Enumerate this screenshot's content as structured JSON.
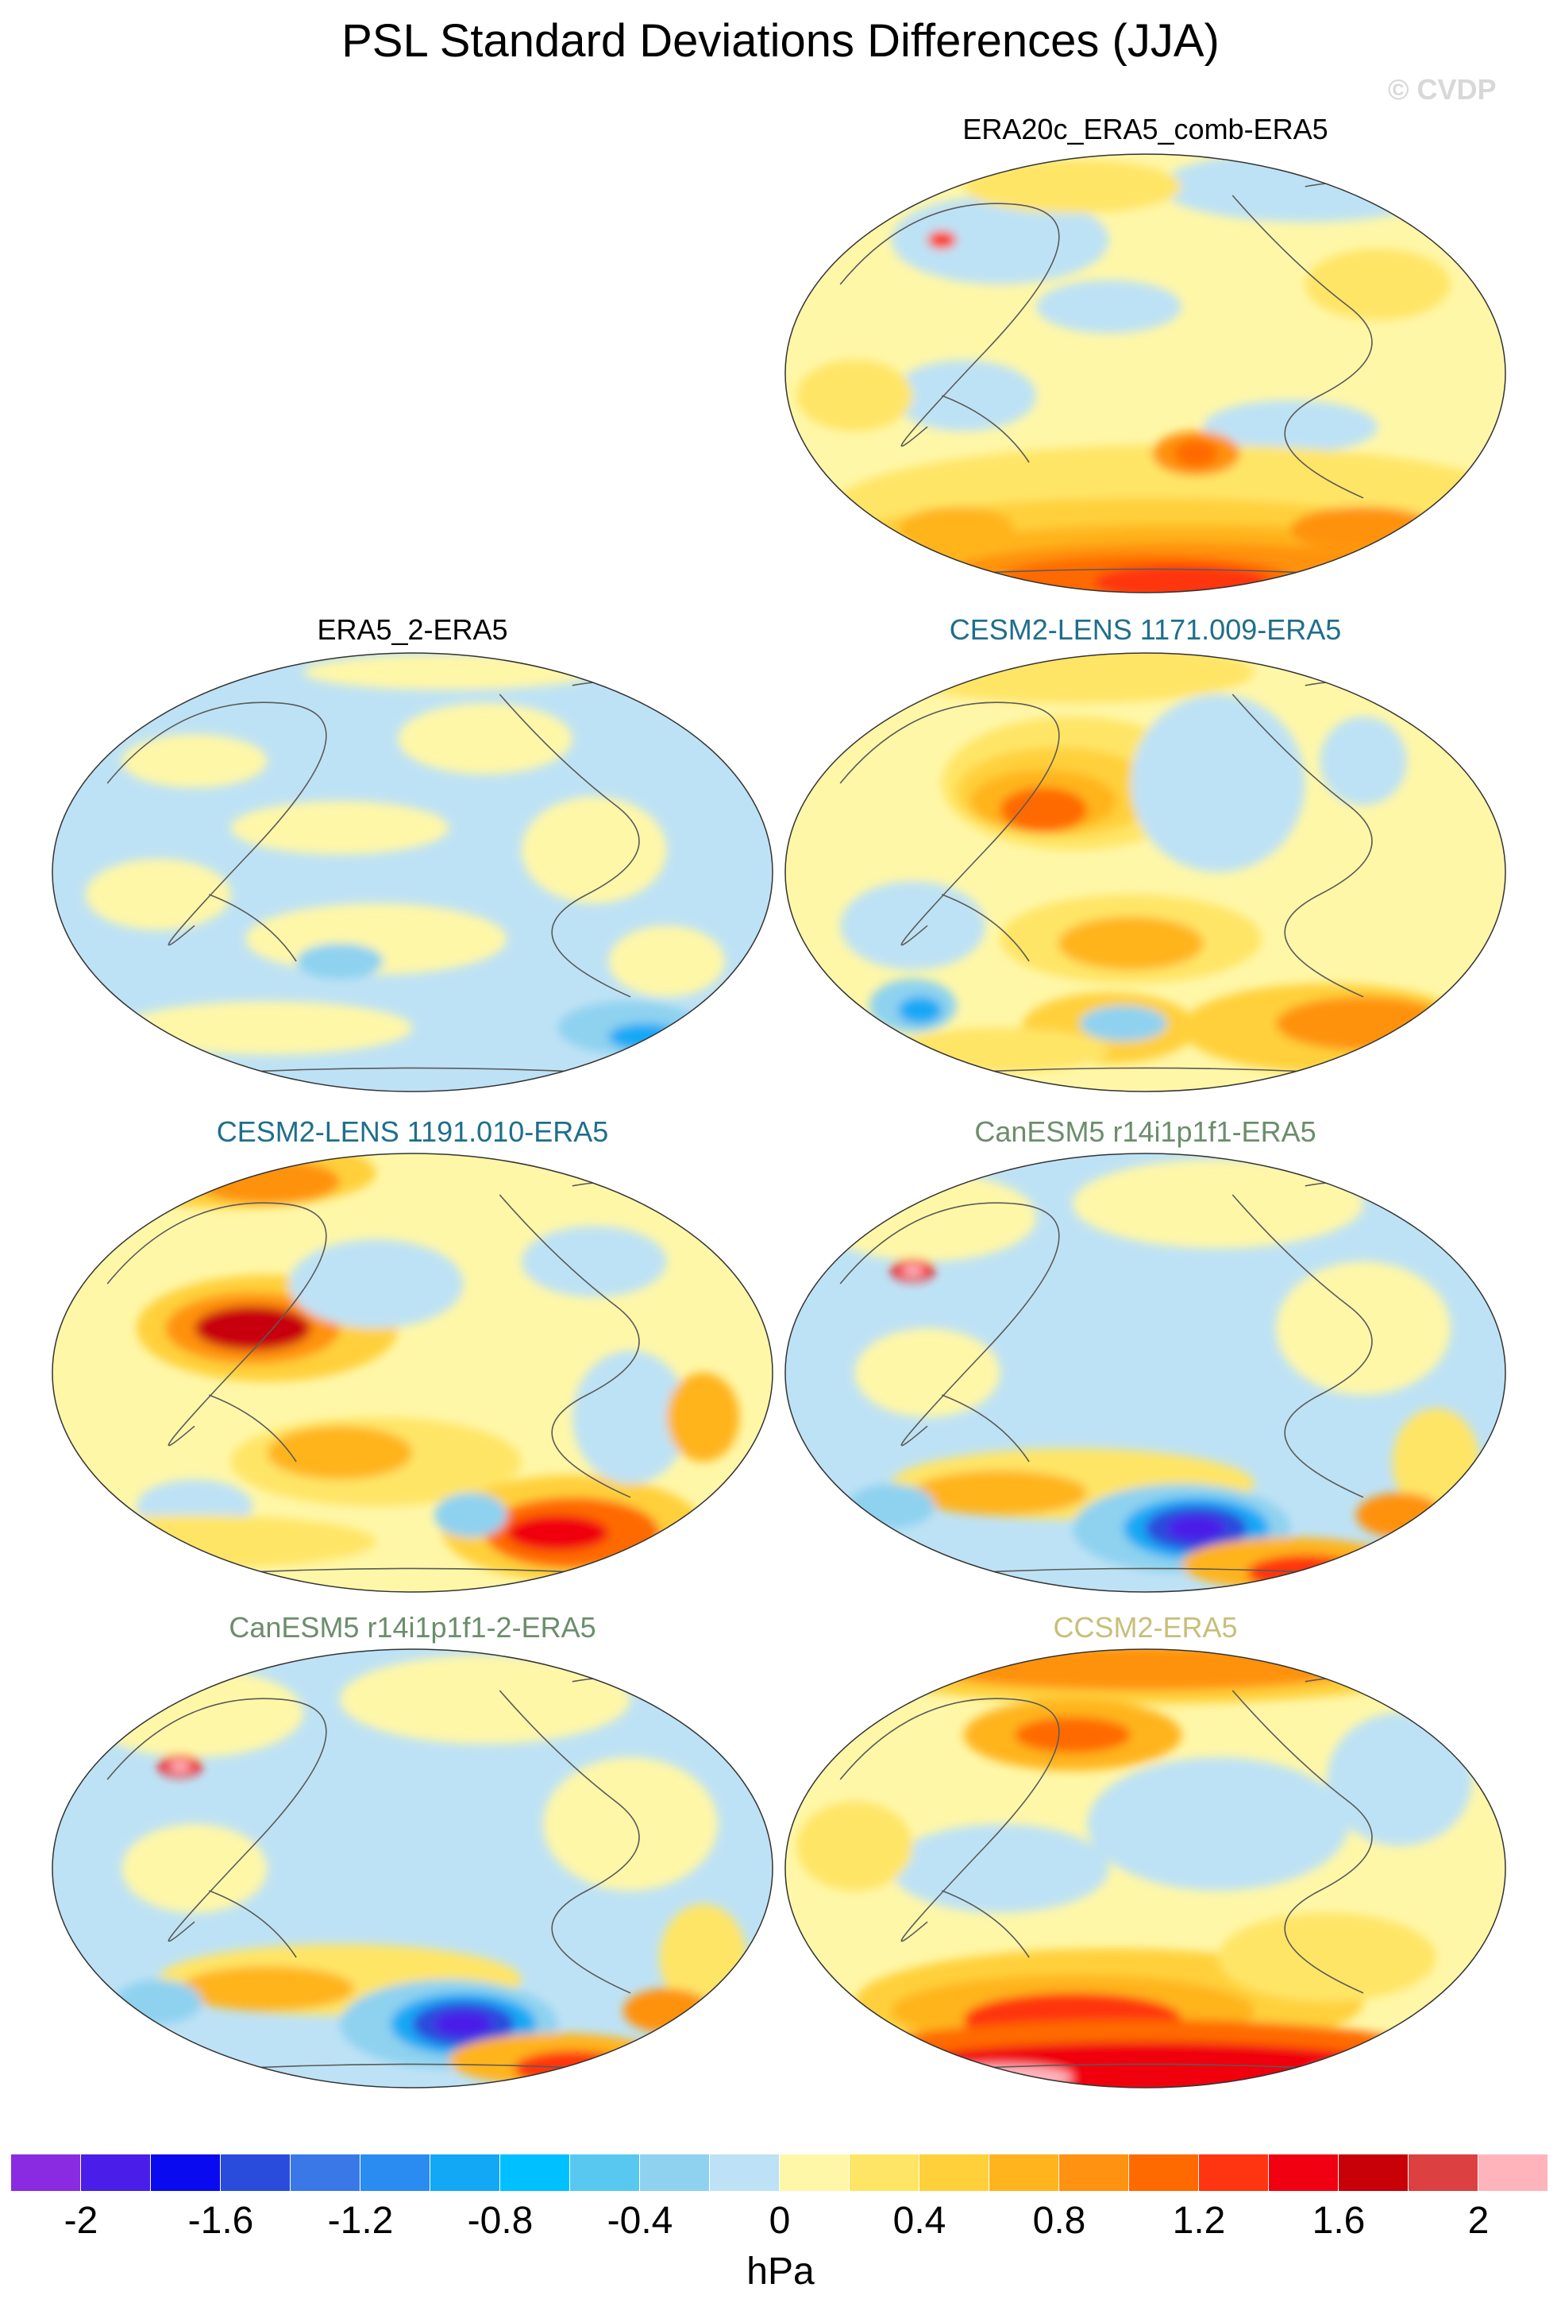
{
  "title": "PSL Standard Deviations Differences (JJA)",
  "watermark": "© CVDP",
  "panels": [
    {
      "id": "p1",
      "label": "ERA20c_ERA5_comb-ERA5",
      "label_color": "#000000",
      "pattern": "southern-ocean-warm"
    },
    {
      "id": "p2",
      "label": "ERA5_2-ERA5",
      "label_color": "#000000",
      "pattern": "near-neutral"
    },
    {
      "id": "p3",
      "label": "CESM2-LENS 1171.009-ERA5",
      "label_color": "#1f6f8b",
      "pattern": "north-pacific-warm"
    },
    {
      "id": "p4",
      "label": "CESM2-LENS 1191.010-ERA5",
      "label_color": "#1f6f8b",
      "pattern": "strong-warm"
    },
    {
      "id": "p5",
      "label": "CanESM5 r14i1p1f1-ERA5",
      "label_color": "#6b8e6b",
      "pattern": "south-pacific-cold"
    },
    {
      "id": "p6",
      "label": "CanESM5 r14i1p1f1-2-ERA5",
      "label_color": "#6b8e6b",
      "pattern": "south-pacific-cold"
    },
    {
      "id": "p7",
      "label": "CCSM2-ERA5",
      "label_color": "#c7bf7a",
      "pattern": "high-latitude-warm"
    }
  ],
  "colorbar": {
    "colors": [
      "#8a2be2",
      "#4a1ee8",
      "#0a0af0",
      "#2a4cdc",
      "#3a78e8",
      "#2a8cf0",
      "#12a8f5",
      "#00c0ff",
      "#58c8f0",
      "#8ed2f0",
      "#bee2f5",
      "#fff7a8",
      "#ffe566",
      "#ffd03a",
      "#ffb41e",
      "#ff9210",
      "#ff6a00",
      "#ff3410",
      "#f00010",
      "#c80008",
      "#dc4040",
      "#ffb4bc"
    ],
    "tick_labels": [
      "-2",
      "-1.6",
      "-1.2",
      "-0.8",
      "-0.4",
      "0",
      "0.4",
      "0.8",
      "1.2",
      "1.6",
      "2"
    ],
    "units": "hPa"
  }
}
